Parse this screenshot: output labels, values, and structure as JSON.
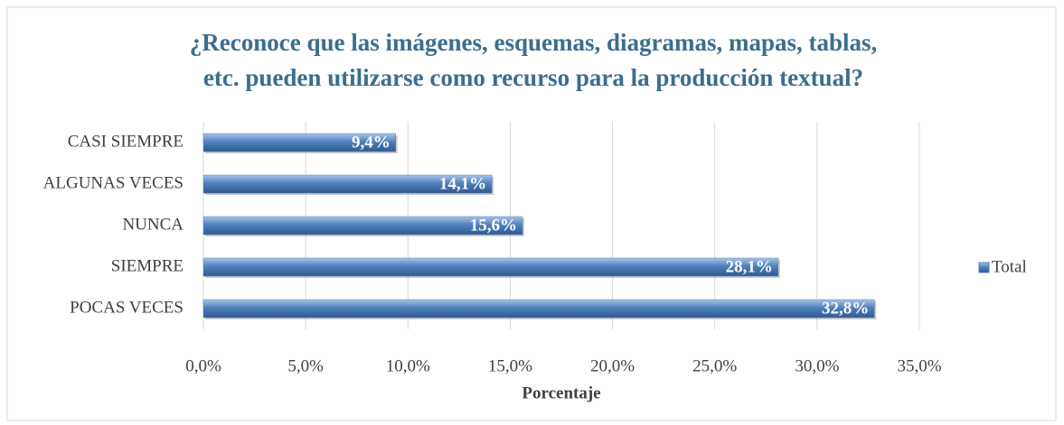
{
  "chart_data": {
    "type": "bar",
    "orientation": "horizontal",
    "title": [
      "¿Reconoce que las imágenes, esquemas, diagramas, mapas, tablas,",
      "etc. pueden utilizarse como recurso para la producción textual?"
    ],
    "x_label": "Porcentaje",
    "categories": [
      "CASI SIEMPRE",
      "ALGUNAS VECES",
      "NUNCA",
      "SIEMPRE",
      "POCAS VECES"
    ],
    "series": [
      {
        "name": "Total",
        "color": "#4f81bd",
        "values": [
          9.4,
          14.1,
          15.6,
          28.1,
          32.8
        ],
        "value_labels": [
          "9,4%",
          "14,1%",
          "15,6%",
          "28,1%",
          "32,8%"
        ]
      }
    ],
    "xlim": [
      0,
      35
    ],
    "xticks": [
      {
        "value": 0,
        "label": "0,0%"
      },
      {
        "value": 5,
        "label": "5,0%"
      },
      {
        "value": 10,
        "label": "10,0%"
      },
      {
        "value": 15,
        "label": "15,0%"
      },
      {
        "value": 20,
        "label": "20,0%"
      },
      {
        "value": 25,
        "label": "25,0%"
      },
      {
        "value": 30,
        "label": "30,0%"
      },
      {
        "value": 35,
        "label": "35,0%"
      }
    ],
    "grid": true,
    "legend": "right"
  }
}
